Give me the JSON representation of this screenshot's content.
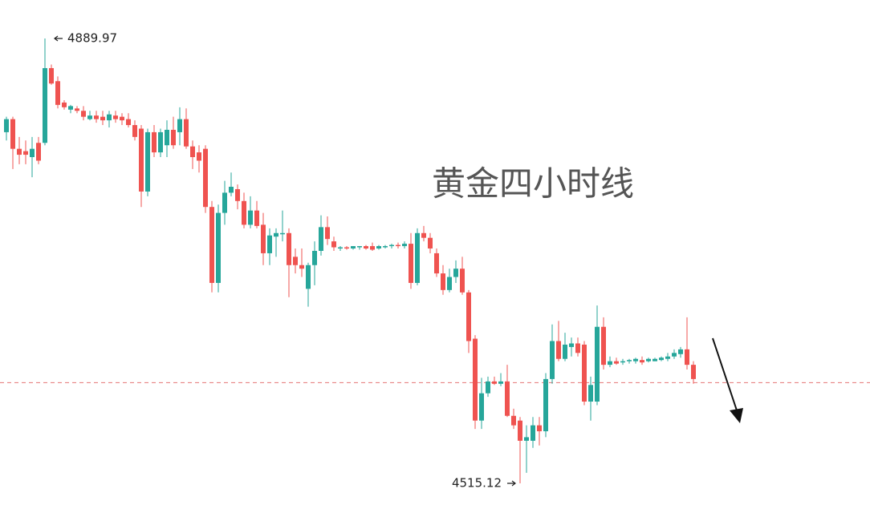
{
  "chart_data": {
    "type": "candlestick",
    "title": "黄金四小时线",
    "up_color": "#26a69a",
    "down_color": "#ef5350",
    "high_label": 4889.97,
    "low_label": 4515.12,
    "reference_line": 4600,
    "ohlc": [
      [
        4811,
        4824,
        4804,
        4822
      ],
      [
        4822,
        4824,
        4780,
        4797
      ],
      [
        4797,
        4807,
        4784,
        4792
      ],
      [
        4795,
        4804,
        4784,
        4792
      ],
      [
        4790,
        4807,
        4773,
        4797
      ],
      [
        4802,
        4807,
        4784,
        4787
      ],
      [
        4802,
        4889.97,
        4800,
        4865
      ],
      [
        4865,
        4868,
        4851,
        4852
      ],
      [
        4854,
        4858,
        4831,
        4834
      ],
      [
        4836,
        4838,
        4830,
        4832
      ],
      [
        4830,
        4834,
        4827,
        4833
      ],
      [
        4831,
        4833,
        4827,
        4829
      ],
      [
        4829,
        4833,
        4821,
        4824
      ],
      [
        4822,
        4829,
        4821,
        4825
      ],
      [
        4825,
        4829,
        4819,
        4822
      ],
      [
        4824,
        4829,
        4817,
        4821
      ],
      [
        4821,
        4829,
        4815,
        4826
      ],
      [
        4825,
        4829,
        4819,
        4822
      ],
      [
        4824,
        4827,
        4817,
        4821
      ],
      [
        4822,
        4827,
        4815,
        4817
      ],
      [
        4817,
        4821,
        4804,
        4807
      ],
      [
        4814,
        4817,
        4748,
        4761
      ],
      [
        4761,
        4814,
        4757,
        4811
      ],
      [
        4811,
        4817,
        4790,
        4794
      ],
      [
        4794,
        4814,
        4790,
        4811
      ],
      [
        4800,
        4821,
        4790,
        4813
      ],
      [
        4813,
        4824,
        4797,
        4800
      ],
      [
        4811,
        4832,
        4800,
        4822
      ],
      [
        4822,
        4831,
        4797,
        4799
      ],
      [
        4799,
        4804,
        4780,
        4790
      ],
      [
        4794,
        4800,
        4777,
        4787
      ],
      [
        4797,
        4800,
        4743,
        4748
      ],
      [
        4748,
        4753,
        4676,
        4684
      ],
      [
        4684,
        4750,
        4676,
        4743
      ],
      [
        4743,
        4770,
        4733,
        4760
      ],
      [
        4760,
        4777,
        4757,
        4765
      ],
      [
        4763,
        4767,
        4746,
        4753
      ],
      [
        4753,
        4760,
        4730,
        4733
      ],
      [
        4733,
        4757,
        4730,
        4745
      ],
      [
        4745,
        4753,
        4730,
        4732
      ],
      [
        4733,
        4743,
        4699,
        4709
      ],
      [
        4709,
        4730,
        4699,
        4724
      ],
      [
        4723,
        4730,
        4706,
        4726
      ],
      [
        4725,
        4745,
        4719,
        4726
      ],
      [
        4726,
        4730,
        4672,
        4699
      ],
      [
        4706,
        4713,
        4692,
        4699
      ],
      [
        4699,
        4713,
        4689,
        4696
      ],
      [
        4679,
        4701,
        4664,
        4699
      ],
      [
        4699,
        4719,
        4682,
        4711
      ],
      [
        4711,
        4741,
        4707,
        4731
      ],
      [
        4731,
        4740,
        4716,
        4721
      ],
      [
        4719,
        4723,
        4711,
        4714
      ],
      [
        4713,
        4715,
        4711,
        4714
      ],
      [
        4714,
        4715,
        4712,
        4713
      ],
      [
        4713,
        4715,
        4712,
        4715
      ],
      [
        4714,
        4715,
        4712,
        4715
      ],
      [
        4715,
        4716,
        4712,
        4713
      ],
      [
        4715,
        4718,
        4711,
        4712
      ],
      [
        4713,
        4716,
        4712,
        4715
      ],
      [
        4714,
        4716,
        4713,
        4715
      ],
      [
        4715,
        4717,
        4713,
        4716
      ],
      [
        4716,
        4718,
        4713,
        4715
      ],
      [
        4715,
        4719,
        4713,
        4717
      ],
      [
        4717,
        4726,
        4679,
        4684
      ],
      [
        4684,
        4730,
        4682,
        4726
      ],
      [
        4726,
        4732,
        4719,
        4722
      ],
      [
        4722,
        4726,
        4709,
        4713
      ],
      [
        4709,
        4713,
        4689,
        4692
      ],
      [
        4692,
        4699,
        4674,
        4678
      ],
      [
        4678,
        4696,
        4676,
        4689
      ],
      [
        4689,
        4703,
        4684,
        4696
      ],
      [
        4696,
        4706,
        4674,
        4676
      ],
      [
        4676,
        4678,
        4625,
        4635
      ],
      [
        4637,
        4640,
        4561,
        4568
      ],
      [
        4568,
        4604,
        4561,
        4591
      ],
      [
        4591,
        4605,
        4588,
        4601
      ],
      [
        4601,
        4605,
        4598,
        4599
      ],
      [
        4599,
        4608,
        4597,
        4601
      ],
      [
        4601,
        4615,
        4571,
        4572
      ],
      [
        4572,
        4578,
        4561,
        4564
      ],
      [
        4568,
        4571,
        4515.12,
        4551
      ],
      [
        4551,
        4564,
        4524,
        4554
      ],
      [
        4551,
        4571,
        4545,
        4564
      ],
      [
        4564,
        4571,
        4547,
        4559
      ],
      [
        4559,
        4608,
        4554,
        4603
      ],
      [
        4603,
        4649,
        4599,
        4635
      ],
      [
        4635,
        4652,
        4618,
        4620
      ],
      [
        4620,
        4642,
        4618,
        4632
      ],
      [
        4630,
        4638,
        4622,
        4633
      ],
      [
        4633,
        4638,
        4622,
        4625
      ],
      [
        4632,
        4635,
        4581,
        4584
      ],
      [
        4584,
        4605,
        4568,
        4598
      ],
      [
        4584,
        4665,
        4581,
        4647
      ],
      [
        4647,
        4655,
        4611,
        4615
      ],
      [
        4615,
        4622,
        4613,
        4618
      ],
      [
        4618,
        4621,
        4615,
        4616
      ],
      [
        4617,
        4620,
        4615,
        4618
      ],
      [
        4618,
        4620,
        4616,
        4619
      ],
      [
        4618,
        4621,
        4616,
        4620
      ],
      [
        4619,
        4622,
        4615,
        4617
      ],
      [
        4618,
        4621,
        4617,
        4620
      ],
      [
        4618,
        4621,
        4618,
        4620
      ],
      [
        4619,
        4622,
        4618,
        4621
      ],
      [
        4620,
        4625,
        4618,
        4622
      ],
      [
        4622,
        4628,
        4620,
        4625
      ],
      [
        4624,
        4630,
        4621,
        4628
      ],
      [
        4628,
        4655,
        4611,
        4615
      ],
      [
        4615,
        4618,
        4599,
        4603
      ]
    ]
  }
}
